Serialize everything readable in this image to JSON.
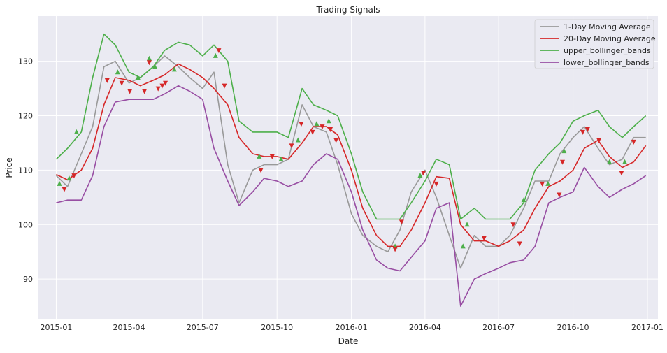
{
  "chart_data": {
    "type": "line",
    "title": "Trading Signals",
    "xlabel": "Date",
    "ylabel": "Price",
    "xlim": [
      "2014-12-10",
      "2017-01-14"
    ],
    "ylim": [
      82.7,
      138.3
    ],
    "grid": true,
    "legend_position": "top-right",
    "x_ticks": [
      "2015-01-01",
      "2015-04-01",
      "2015-07-01",
      "2015-10-01",
      "2016-01-01",
      "2016-04-01",
      "2016-07-01",
      "2016-10-01",
      "2017-01-01"
    ],
    "x_tick_labels": [
      "2015-01",
      "2015-04",
      "2015-07",
      "2015-10",
      "2016-01",
      "2016-04",
      "2016-07",
      "2016-10",
      "2017-01"
    ],
    "y_ticks": [
      90,
      100,
      110,
      120,
      130
    ],
    "x": [
      "2015-01-01",
      "2015-01-15",
      "2015-02-01",
      "2015-02-15",
      "2015-03-01",
      "2015-03-15",
      "2015-04-01",
      "2015-04-15",
      "2015-05-01",
      "2015-05-15",
      "2015-06-01",
      "2015-06-15",
      "2015-07-01",
      "2015-07-15",
      "2015-08-01",
      "2015-08-15",
      "2015-09-01",
      "2015-09-15",
      "2015-10-01",
      "2015-10-15",
      "2015-11-01",
      "2015-11-15",
      "2015-12-01",
      "2015-12-15",
      "2016-01-01",
      "2016-01-15",
      "2016-02-01",
      "2016-02-15",
      "2016-03-01",
      "2016-03-15",
      "2016-04-01",
      "2016-04-15",
      "2016-05-01",
      "2016-05-15",
      "2016-06-01",
      "2016-06-15",
      "2016-07-01",
      "2016-07-15",
      "2016-08-01",
      "2016-08-15",
      "2016-09-01",
      "2016-09-15",
      "2016-10-01",
      "2016-10-15",
      "2016-11-01",
      "2016-11-15",
      "2016-12-01",
      "2016-12-15",
      "2016-12-30"
    ],
    "series": [
      {
        "name": "1-Day Moving Average",
        "color": "#999999",
        "values": [
          109,
          107,
          113,
          118,
          129,
          130,
          126,
          127,
          129,
          131,
          129,
          127,
          125,
          128,
          111,
          104,
          110,
          111,
          111,
          112,
          122,
          118,
          117,
          111,
          102,
          98,
          96,
          95,
          99,
          106,
          110,
          105,
          98,
          92,
          98,
          96,
          96,
          98,
          103,
          108,
          108,
          113,
          116,
          118,
          114,
          111,
          112,
          116,
          116
        ]
      },
      {
        "name": "20-Day Moving Average",
        "color": "#d62728",
        "values": [
          109.2,
          108.2,
          110,
          114,
          122,
          127,
          126.5,
          125.5,
          126.5,
          127.5,
          129.5,
          128.5,
          127,
          125,
          122,
          116,
          113,
          112.5,
          112.5,
          112,
          115,
          118,
          118,
          116.5,
          110,
          103,
          98,
          96,
          96,
          99,
          104,
          108.8,
          108.5,
          100,
          97,
          97,
          96,
          97,
          99,
          103,
          107,
          108,
          110,
          114,
          115.5,
          112.5,
          110.5,
          111.5,
          114.5
        ]
      },
      {
        "name": "upper_bollinger_bands",
        "color": "#4daf4a",
        "values": [
          112,
          114,
          117,
          127,
          135,
          133,
          128,
          127,
          129,
          132,
          133.5,
          133,
          131,
          133,
          130,
          119,
          117,
          117,
          117,
          116,
          125,
          122,
          121,
          120,
          113,
          106,
          101,
          101,
          101,
          104,
          108,
          112,
          111,
          101,
          103,
          101,
          101,
          101,
          104,
          110,
          113,
          115,
          119,
          120,
          121,
          118,
          116,
          118,
          120
        ]
      },
      {
        "name": "lower_bollinger_bands",
        "color": "#984ea3",
        "values": [
          104,
          104.5,
          104.5,
          109,
          118,
          122.5,
          123,
          123,
          123,
          124,
          125.5,
          124.5,
          123,
          114,
          108,
          103.5,
          106,
          108.5,
          108,
          107,
          108,
          111,
          113,
          112,
          106,
          99,
          93.5,
          92,
          91.5,
          94,
          97,
          103,
          104,
          85,
          90,
          91,
          92,
          93,
          93.5,
          96,
          104,
          105,
          106,
          110.5,
          107,
          105,
          106.5,
          107.5,
          109
        ]
      }
    ],
    "markers": [
      {
        "type": "buy",
        "color": "#4daf4a",
        "marker": "triangle-up",
        "points": [
          [
            "2015-01-05",
            107.5
          ],
          [
            "2015-01-17",
            108.5
          ],
          [
            "2015-01-26",
            117
          ],
          [
            "2015-03-18",
            128
          ],
          [
            "2015-04-12",
            127
          ],
          [
            "2015-04-26",
            130.5
          ],
          [
            "2015-05-03",
            129
          ],
          [
            "2015-05-27",
            128.5
          ],
          [
            "2015-07-17",
            131
          ],
          [
            "2015-09-09",
            112.5
          ],
          [
            "2015-10-06",
            112
          ],
          [
            "2015-10-27",
            115.5
          ],
          [
            "2015-11-19",
            118.5
          ],
          [
            "2015-12-04",
            119
          ],
          [
            "2016-02-24",
            96
          ],
          [
            "2016-03-26",
            109
          ],
          [
            "2016-05-18",
            96
          ],
          [
            "2016-05-23",
            100
          ],
          [
            "2016-08-01",
            104.5
          ],
          [
            "2016-08-31",
            107.5
          ],
          [
            "2016-09-20",
            113.5
          ],
          [
            "2016-11-15",
            111.5
          ],
          [
            "2016-12-04",
            111.5
          ]
        ]
      },
      {
        "type": "sell",
        "color": "#d62728",
        "marker": "triangle-down",
        "points": [
          [
            "2015-01-11",
            106.5
          ],
          [
            "2015-01-23",
            109
          ],
          [
            "2015-03-05",
            126.5
          ],
          [
            "2015-03-23",
            126
          ],
          [
            "2015-04-02",
            124.5
          ],
          [
            "2015-04-20",
            124.5
          ],
          [
            "2015-04-26",
            129.8
          ],
          [
            "2015-05-07",
            125
          ],
          [
            "2015-05-12",
            125.5
          ],
          [
            "2015-05-16",
            126
          ],
          [
            "2015-07-21",
            132
          ],
          [
            "2015-07-28",
            125.5
          ],
          [
            "2015-09-11",
            110
          ],
          [
            "2015-09-25",
            112.5
          ],
          [
            "2015-10-19",
            114.5
          ],
          [
            "2015-10-31",
            118.5
          ],
          [
            "2015-11-14",
            117
          ],
          [
            "2015-11-26",
            118
          ],
          [
            "2015-12-06",
            117.5
          ],
          [
            "2015-12-13",
            115.5
          ],
          [
            "2016-02-24",
            95.5
          ],
          [
            "2016-03-03",
            100.5
          ],
          [
            "2016-03-30",
            109.5
          ],
          [
            "2016-04-15",
            107.5
          ],
          [
            "2016-06-13",
            97.5
          ],
          [
            "2016-07-19",
            100
          ],
          [
            "2016-07-27",
            96.5
          ],
          [
            "2016-08-24",
            107.5
          ],
          [
            "2016-09-14",
            105.5
          ],
          [
            "2016-09-18",
            111.5
          ],
          [
            "2016-10-13",
            117
          ],
          [
            "2016-10-19",
            117.5
          ],
          [
            "2016-11-02",
            115.5
          ],
          [
            "2016-11-30",
            109.5
          ],
          [
            "2016-12-15",
            115.2
          ]
        ]
      }
    ]
  }
}
